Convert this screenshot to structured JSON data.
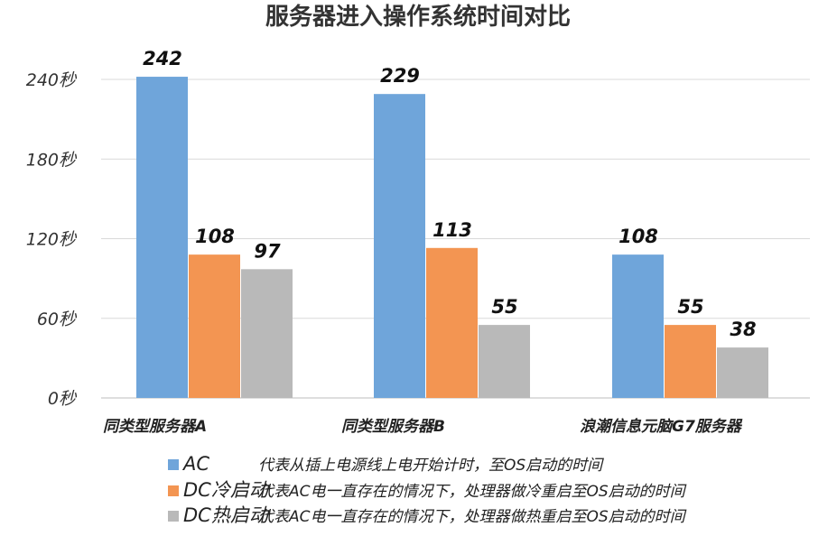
{
  "chart_data": {
    "type": "bar",
    "title": "服务器进入操作系统时间对比",
    "categories": [
      "同类型服务器A",
      "同类型服务器B",
      "浪潮信息元脑G7服务器"
    ],
    "series": [
      {
        "name": "AC",
        "color": "#6fa5da",
        "description": "代表从插上电源线上电开始计时，至OS启动的时间",
        "values": [
          242,
          229,
          108
        ]
      },
      {
        "name": "DC冷启动",
        "color": "#f39552",
        "description": "代表AC电一直存在的情况下，处理器做冷重启至OS启动的时间",
        "values": [
          108,
          113,
          55
        ]
      },
      {
        "name": "DC热启动",
        "color": "#b9b9b9",
        "description": "代表AC电一直存在的情况下，处理器做热重启至OS启动的时间",
        "values": [
          97,
          55,
          38
        ]
      }
    ],
    "ylim": [
      0,
      240
    ],
    "yticks": [
      {
        "value": 0,
        "label": "0秒"
      },
      {
        "value": 60,
        "label": "60秒"
      },
      {
        "value": 120,
        "label": "120秒"
      },
      {
        "value": 180,
        "label": "180秒"
      },
      {
        "value": 240,
        "label": "240秒"
      }
    ],
    "grid": true,
    "legend_position": "bottom"
  }
}
